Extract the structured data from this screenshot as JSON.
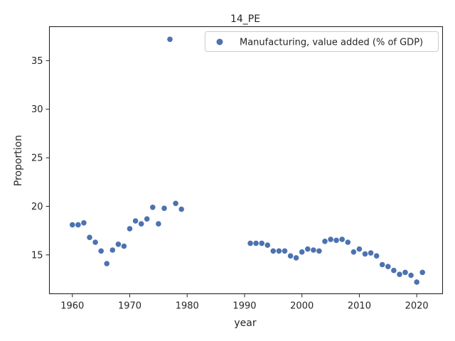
{
  "chart_data": {
    "type": "scatter",
    "title": "14_PE",
    "xlabel": "year",
    "ylabel": "Proportion",
    "xlim": [
      1956,
      2024.5
    ],
    "ylim": [
      11,
      38.5
    ],
    "xticks": [
      1960,
      1970,
      1980,
      1990,
      2000,
      2010,
      2020
    ],
    "yticks": [
      15,
      20,
      25,
      30,
      35
    ],
    "grid": false,
    "legend_position": "upper right",
    "series": [
      {
        "name": "Manufacturing, value added (% of GDP)",
        "color": "#4c72b0",
        "points": [
          [
            1960,
            18.1
          ],
          [
            1961,
            18.1
          ],
          [
            1962,
            18.3
          ],
          [
            1963,
            16.8
          ],
          [
            1964,
            16.3
          ],
          [
            1965,
            15.4
          ],
          [
            1966,
            14.1
          ],
          [
            1967,
            15.5
          ],
          [
            1968,
            16.1
          ],
          [
            1969,
            15.9
          ],
          [
            1970,
            17.7
          ],
          [
            1971,
            18.5
          ],
          [
            1972,
            18.2
          ],
          [
            1973,
            18.7
          ],
          [
            1974,
            19.9
          ],
          [
            1975,
            18.2
          ],
          [
            1976,
            19.8
          ],
          [
            1977,
            37.2
          ],
          [
            1978,
            20.3
          ],
          [
            1979,
            19.7
          ],
          [
            1991,
            16.2
          ],
          [
            1992,
            16.2
          ],
          [
            1993,
            16.2
          ],
          [
            1994,
            16.0
          ],
          [
            1995,
            15.4
          ],
          [
            1996,
            15.4
          ],
          [
            1997,
            15.4
          ],
          [
            1998,
            14.9
          ],
          [
            1999,
            14.7
          ],
          [
            2000,
            15.3
          ],
          [
            2001,
            15.6
          ],
          [
            2002,
            15.5
          ],
          [
            2003,
            15.4
          ],
          [
            2004,
            16.4
          ],
          [
            2005,
            16.6
          ],
          [
            2006,
            16.5
          ],
          [
            2007,
            16.6
          ],
          [
            2008,
            16.3
          ],
          [
            2009,
            15.3
          ],
          [
            2010,
            15.6
          ],
          [
            2011,
            15.1
          ],
          [
            2012,
            15.2
          ],
          [
            2013,
            14.9
          ],
          [
            2014,
            14.0
          ],
          [
            2015,
            13.8
          ],
          [
            2016,
            13.4
          ],
          [
            2017,
            13.0
          ],
          [
            2018,
            13.2
          ],
          [
            2019,
            12.9
          ],
          [
            2020,
            12.2
          ],
          [
            2021,
            13.2
          ]
        ]
      }
    ]
  }
}
